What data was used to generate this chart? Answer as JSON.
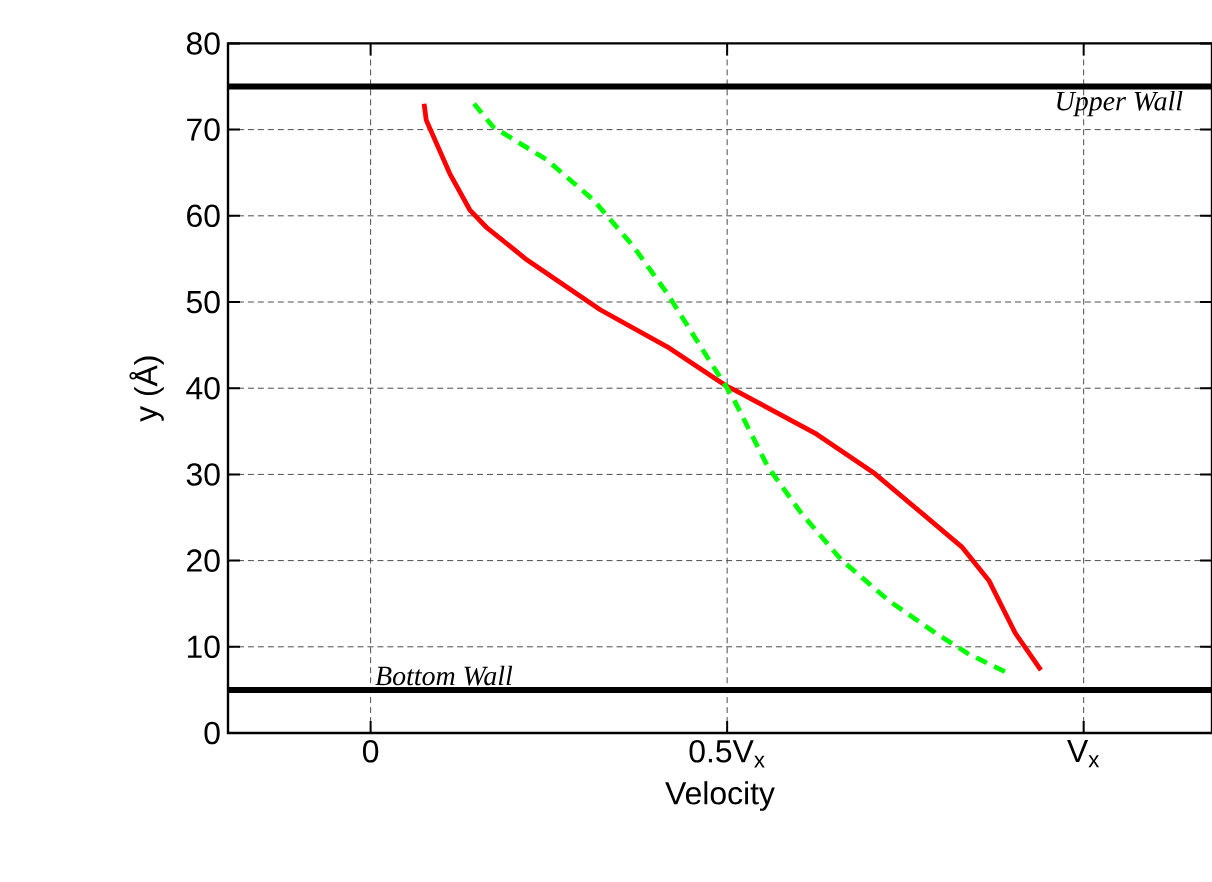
{
  "chart_data": {
    "type": "line",
    "xlabel": "Velocity",
    "ylabel": "y (Å)",
    "xlim": [
      -0.2,
      1.18
    ],
    "ylim": [
      0,
      80
    ],
    "xticks": [
      0,
      {
        "value": 0.5,
        "label": "0.5V$_{x}$"
      },
      {
        "value": 1,
        "label": "V$_{x}$"
      }
    ],
    "yticks": [
      0,
      10,
      20,
      30,
      40,
      50,
      60,
      70,
      80
    ],
    "grid": true,
    "series": [
      {
        "color": "#ff0000",
        "line_style": "solid",
        "x": [
          0.075,
          0.078,
          0.111,
          0.139,
          0.162,
          0.219,
          0.322,
          0.416,
          0.5,
          0.51,
          0.623,
          0.707,
          0.773,
          0.829,
          0.867,
          0.904,
          0.94
        ],
        "values": [
          73.0,
          71.1,
          64.9,
          60.7,
          58.7,
          54.9,
          49.1,
          44.8,
          40.2,
          39.8,
          34.8,
          30.1,
          25.5,
          21.6,
          17.7,
          11.6,
          7.3
        ]
      },
      {
        "color": "#00ff00",
        "line_style": "dashed",
        "x": [
          0.145,
          0.172,
          0.247,
          0.313,
          0.369,
          0.416,
          0.463,
          0.5,
          0.51,
          0.557,
          0.604,
          0.66,
          0.726,
          0.792,
          0.838,
          0.89
        ],
        "values": [
          73.0,
          70.3,
          66.5,
          61.8,
          56.4,
          51.0,
          44.8,
          40.0,
          38.6,
          30.9,
          25.5,
          20.1,
          15.4,
          11.6,
          9.2,
          7.1
        ]
      }
    ],
    "ref_lines": [
      {
        "axis": "y",
        "value": 75,
        "label": "Upper Wall",
        "color": "#000000"
      },
      {
        "axis": "y",
        "value": 5,
        "label": "Bottom Wall",
        "color": "#000000"
      }
    ]
  }
}
